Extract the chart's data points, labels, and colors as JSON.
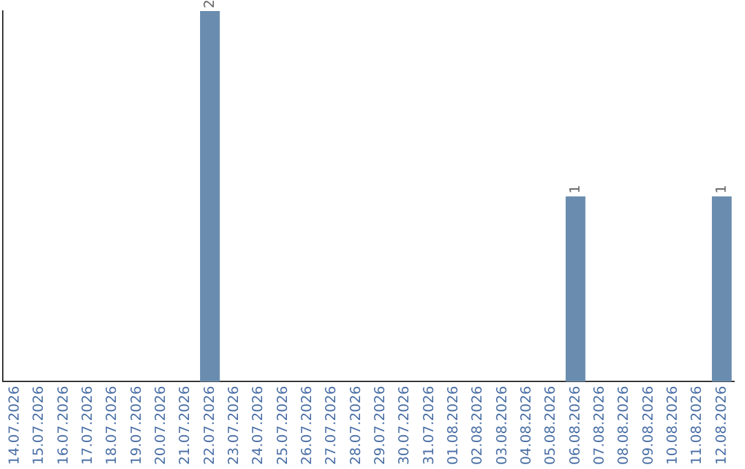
{
  "chart_data": {
    "type": "bar",
    "categories": [
      "14.07.2026",
      "15.07.2026",
      "16.07.2026",
      "17.07.2026",
      "18.07.2026",
      "19.07.2026",
      "20.07.2026",
      "21.07.2026",
      "22.07.2026",
      "23.07.2026",
      "24.07.2026",
      "25.07.2026",
      "26.07.2026",
      "27.07.2026",
      "28.07.2026",
      "29.07.2026",
      "30.07.2026",
      "31.07.2026",
      "01.08.2026",
      "02.08.2026",
      "03.08.2026",
      "04.08.2026",
      "05.08.2026",
      "06.08.2026",
      "07.08.2026",
      "08.08.2026",
      "09.08.2026",
      "10.08.2026",
      "11.08.2026",
      "12.08.2026"
    ],
    "values": [
      0,
      0,
      0,
      0,
      0,
      0,
      0,
      0,
      2,
      0,
      0,
      0,
      0,
      0,
      0,
      0,
      0,
      0,
      0,
      0,
      0,
      0,
      0,
      1,
      0,
      0,
      0,
      0,
      0,
      1
    ],
    "value_labels": [
      null,
      null,
      null,
      null,
      null,
      null,
      null,
      null,
      "2",
      null,
      null,
      null,
      null,
      null,
      null,
      null,
      null,
      null,
      null,
      null,
      null,
      null,
      null,
      "1",
      null,
      null,
      null,
      null,
      null,
      "1"
    ],
    "color": "#6a8caf",
    "tick_labels": "x",
    "grid": false,
    "legend": false
  }
}
